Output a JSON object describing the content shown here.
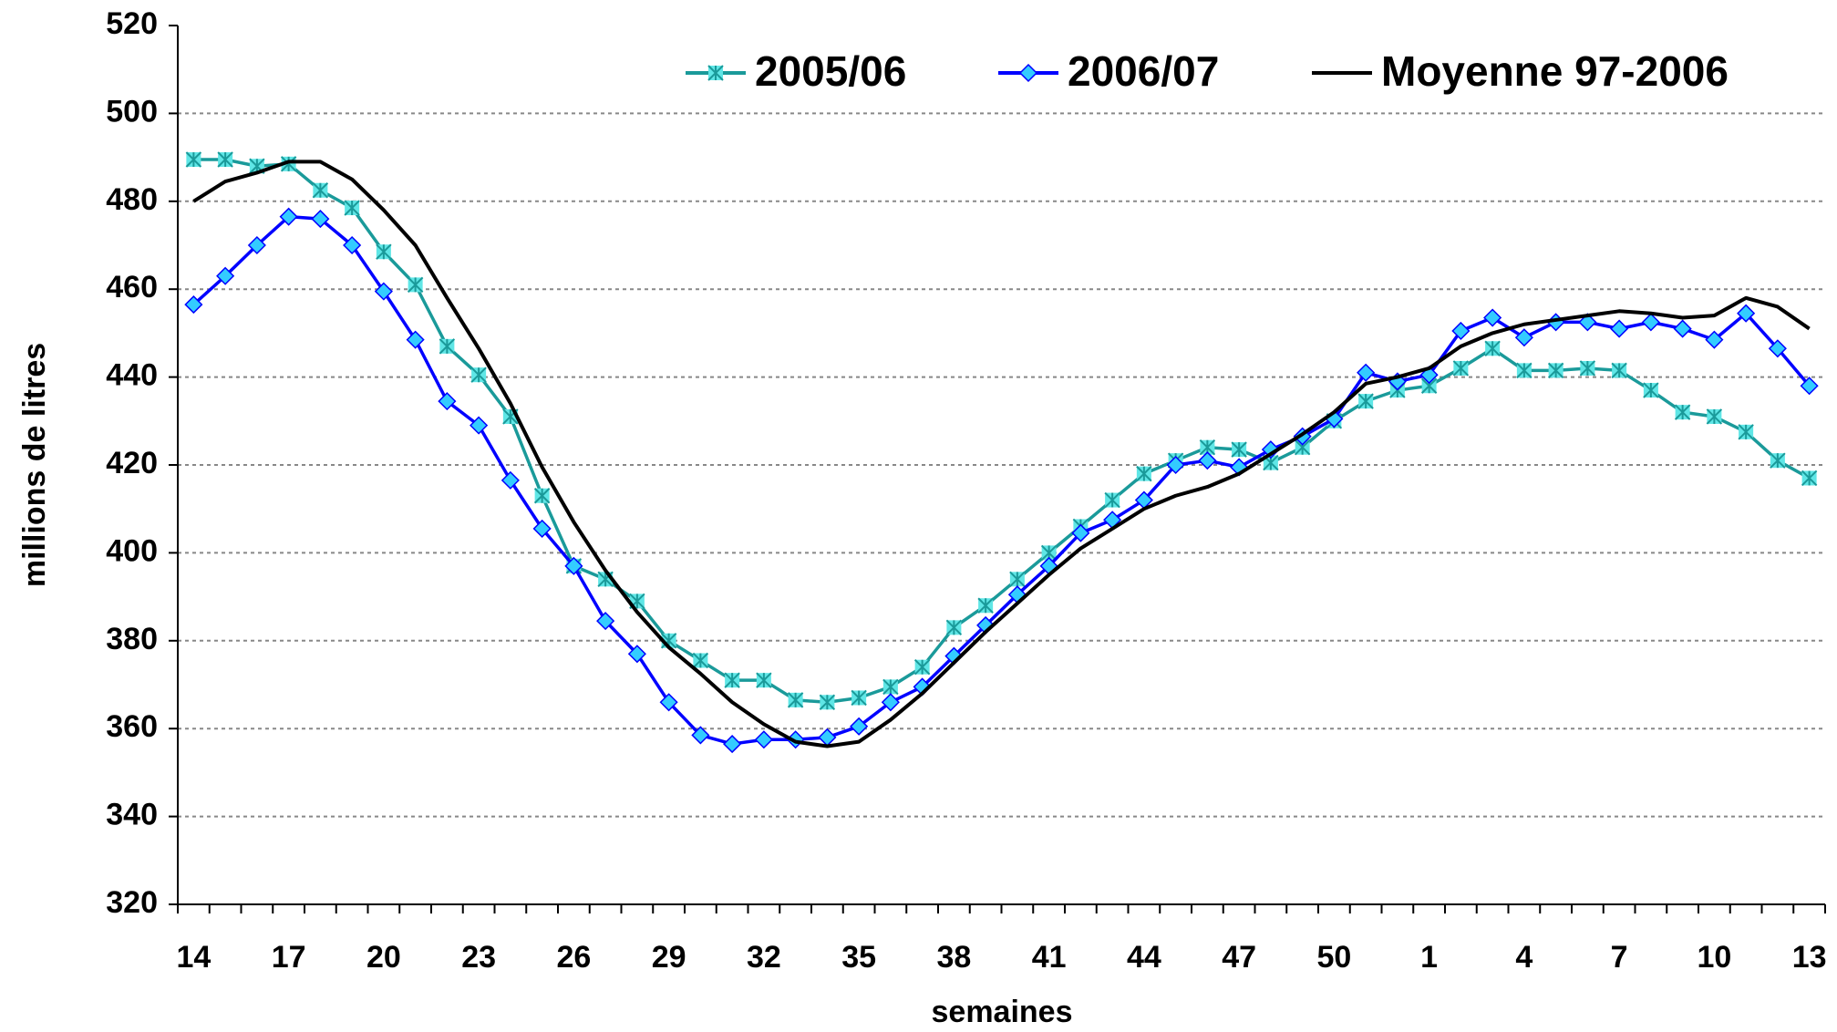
{
  "chart_data": {
    "type": "line",
    "x_label": "semaines",
    "y_label": "millions de litres",
    "categories": [
      14,
      null,
      null,
      17,
      null,
      null,
      20,
      null,
      null,
      23,
      null,
      null,
      26,
      null,
      null,
      29,
      null,
      null,
      32,
      null,
      null,
      35,
      null,
      null,
      38,
      null,
      null,
      41,
      null,
      null,
      44,
      null,
      null,
      47,
      null,
      null,
      50,
      null,
      null,
      1,
      null,
      null,
      4,
      null,
      null,
      7,
      null,
      null,
      10,
      null,
      null,
      13
    ],
    "ylim": [
      320,
      520
    ],
    "yticks": [
      320,
      340,
      360,
      380,
      400,
      420,
      440,
      460,
      480,
      500,
      520
    ],
    "grid": true,
    "legend": "top-right",
    "series": [
      {
        "name": "2005/06",
        "color": "#1a9a9a",
        "marker": "asterisk",
        "marker_color": "#5fe6e6",
        "values": [
          489.5,
          489.5,
          488,
          488.5,
          482.5,
          478.5,
          468.5,
          461,
          447,
          440.5,
          431,
          413,
          397,
          394,
          389,
          380,
          375.5,
          371,
          371,
          366.5,
          366,
          367,
          369.5,
          374,
          383,
          388,
          394,
          400,
          406,
          412,
          418,
          421,
          424,
          423.5,
          420.5,
          424,
          430,
          434.5,
          437,
          438,
          442,
          446.5,
          441.5,
          441.5,
          442,
          441.5,
          437,
          432,
          431,
          427.5,
          421,
          417
        ]
      },
      {
        "name": "2006/07",
        "color": "#0000ff",
        "marker": "diamond",
        "marker_color": "#33ccff",
        "values": [
          456.5,
          463,
          470,
          476.5,
          476,
          470,
          459.5,
          448.5,
          434.5,
          429,
          416.5,
          405.5,
          397,
          384.5,
          377,
          366,
          358.5,
          356.5,
          357.5,
          357.5,
          358,
          360.5,
          366,
          369.5,
          376.5,
          383.5,
          390.5,
          397,
          404.5,
          407.5,
          412,
          420,
          421,
          419.5,
          423.5,
          426.5,
          430.5,
          441,
          439,
          440.5,
          450.5,
          453.5,
          449,
          452.5,
          452.5,
          451,
          452.5,
          451,
          448.5,
          454.5,
          446.5,
          438
        ]
      },
      {
        "name": "Moyenne 97-2006",
        "color": "#000000",
        "marker": "none",
        "values": [
          480,
          484.5,
          486.5,
          489,
          489,
          485,
          478,
          470,
          458,
          446.5,
          434,
          419.5,
          407,
          396,
          386.5,
          378.5,
          372.5,
          366,
          361,
          357,
          356,
          357,
          362,
          368,
          375,
          382,
          388.5,
          395,
          401,
          405.5,
          410,
          413,
          415,
          418,
          422.5,
          427,
          432,
          438.5,
          440,
          442,
          447,
          450,
          452,
          453,
          454,
          455,
          454.5,
          453.5,
          454,
          458,
          456,
          451
        ]
      }
    ]
  }
}
